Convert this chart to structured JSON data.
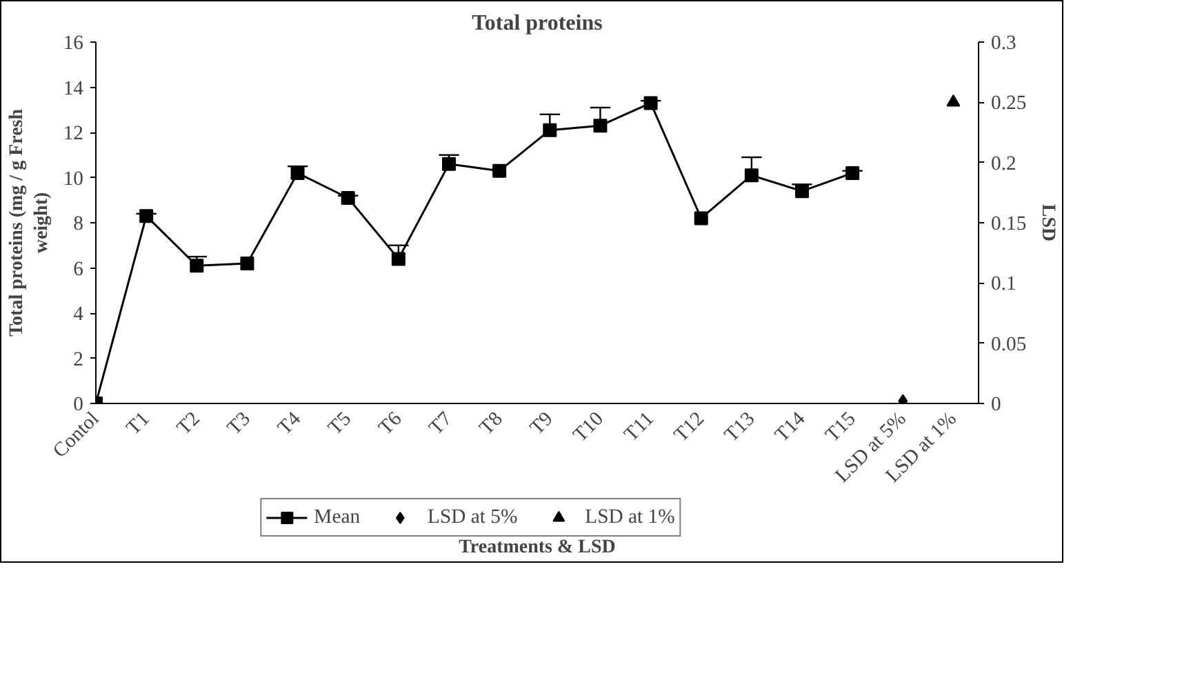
{
  "chart_data": {
    "type": "line",
    "title": "Total proteins",
    "xlabel": "Treatments & LSD",
    "ylabel": "Total proteins (mg / g Fresh\nweight)",
    "y2label": "LSD",
    "categories": [
      "Contol",
      "T1",
      "T2",
      "T3",
      "T4",
      "T5",
      "T6",
      "T7",
      "T8",
      "T9",
      "T10",
      "T11",
      "T12",
      "T13",
      "T14",
      "T15",
      "LSD at 5%",
      "LSD at 1%"
    ],
    "series": [
      {
        "name": "Mean",
        "marker": "square",
        "color": "#000000",
        "values": [
          0,
          8.3,
          6.1,
          6.2,
          10.2,
          9.1,
          6.4,
          10.6,
          10.3,
          12.1,
          12.3,
          13.3,
          8.2,
          10.1,
          9.4,
          10.2,
          null,
          null
        ],
        "errors": [
          null,
          [
            8.3,
            8.4
          ],
          [
            6.1,
            6.5
          ],
          null,
          [
            10.2,
            10.5
          ],
          [
            9.1,
            9.2
          ],
          [
            6.4,
            7.0
          ],
          [
            10.6,
            11.0
          ],
          null,
          [
            12.1,
            12.8
          ],
          [
            12.3,
            13.1
          ],
          [
            13.3,
            13.4
          ],
          null,
          [
            10.1,
            10.9
          ],
          [
            9.4,
            9.7
          ],
          [
            10.2,
            10.3
          ],
          null,
          null
        ]
      },
      {
        "name": "LSD at 5%",
        "type": "scatter",
        "marker": "diamond",
        "axis": "y2",
        "color": "#000000",
        "values": [
          null,
          null,
          null,
          null,
          null,
          null,
          null,
          null,
          null,
          null,
          null,
          null,
          null,
          null,
          null,
          null,
          0.002,
          null
        ]
      },
      {
        "name": "LSD at 1%",
        "type": "scatter",
        "marker": "triangle",
        "axis": "y2",
        "color": "#000000",
        "values": [
          null,
          null,
          null,
          null,
          null,
          null,
          null,
          null,
          null,
          null,
          null,
          null,
          null,
          null,
          null,
          null,
          null,
          0.25
        ]
      }
    ],
    "ylim": [
      0,
      16
    ],
    "yticks": [
      0,
      2,
      4,
      6,
      8,
      10,
      12,
      14,
      16
    ],
    "y2lim": [
      0,
      0.3
    ],
    "y2ticks": [
      0,
      0.05,
      0.1,
      0.15,
      0.2,
      0.25,
      0.3
    ],
    "grid": false,
    "legend": "bottom"
  }
}
